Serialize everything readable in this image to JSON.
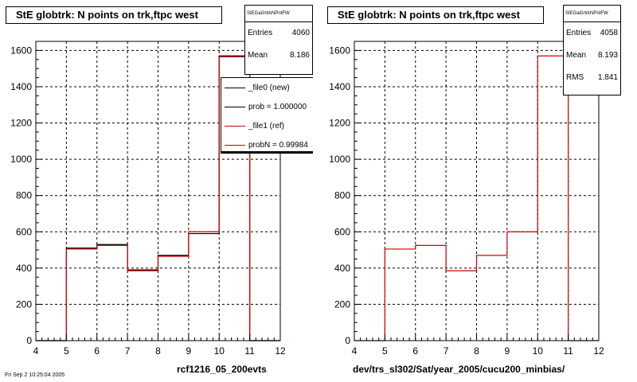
{
  "colors": {
    "ref_line": "#d00000",
    "new_line": "#000000",
    "grid": "#000000"
  },
  "panels": [
    {
      "title": "StE globtrk: N points on trk,ftpc west",
      "stats": {
        "name": "StEGaGrtrkNPntFW",
        "entries_label": "Entries",
        "entries": "4060",
        "mean_label": "Mean",
        "mean": "8.186"
      },
      "legend": [
        {
          "label": "_file0 (new)",
          "color": "#000000"
        },
        {
          "label": "prob = 1.000000",
          "color": "#000000"
        },
        {
          "label": "_file1 (ref)",
          "color": "#d00000"
        },
        {
          "label": "probN = 0.99984",
          "color": "#d00000"
        }
      ],
      "xlabel": "rcf1216_05_200evts"
    },
    {
      "title": "StE globtrk: N points on trk,ftpc west",
      "stats": {
        "name": "StEGaGrtrkNPntFW",
        "entries_label": "Entries",
        "entries": "4058",
        "mean_label": "Mean",
        "mean": "8.193",
        "rms_label": "RMS",
        "rms": "1.841"
      },
      "xlabel": "dev/trs_sl302/Sat/year_2005/cucu200_minbias/"
    }
  ],
  "footer": "Fri Sep 2 10:25:04 2005",
  "chart_data": [
    {
      "type": "histogram",
      "title": "StE globtrk: N points on trk,ftpc west",
      "xlabel": "rcf1216_05_200evts",
      "xlim": [
        4,
        12
      ],
      "ylim": [
        0,
        1650
      ],
      "xticks": [
        4,
        5,
        6,
        7,
        8,
        9,
        10,
        11,
        12
      ],
      "yticks": [
        0,
        200,
        400,
        600,
        800,
        1000,
        1200,
        1400,
        1600
      ],
      "grid": true,
      "bin_edges": [
        4,
        5,
        6,
        7,
        8,
        9,
        10,
        11,
        12
      ],
      "series": [
        {
          "name": "_file0 (new)",
          "values": [
            0,
            510,
            530,
            390,
            470,
            590,
            1570,
            0
          ]
        },
        {
          "name": "_file1 (ref)",
          "values": [
            0,
            505,
            525,
            385,
            465,
            600,
            1565,
            0
          ]
        }
      ]
    },
    {
      "type": "histogram",
      "title": "StE globtrk: N points on trk,ftpc west",
      "xlabel": "dev/trs_sl302/Sat/year_2005/cucu200_minbias/",
      "xlim": [
        4,
        12
      ],
      "ylim": [
        0,
        1650
      ],
      "xticks": [
        4,
        5,
        6,
        7,
        8,
        9,
        10,
        11,
        12
      ],
      "yticks": [
        0,
        200,
        400,
        600,
        800,
        1000,
        1200,
        1400,
        1600
      ],
      "grid": true,
      "bin_edges": [
        4,
        5,
        6,
        7,
        8,
        9,
        10,
        11,
        12
      ],
      "series": [
        {
          "values": [
            0,
            505,
            525,
            385,
            470,
            600,
            1570,
            0
          ]
        }
      ]
    }
  ]
}
